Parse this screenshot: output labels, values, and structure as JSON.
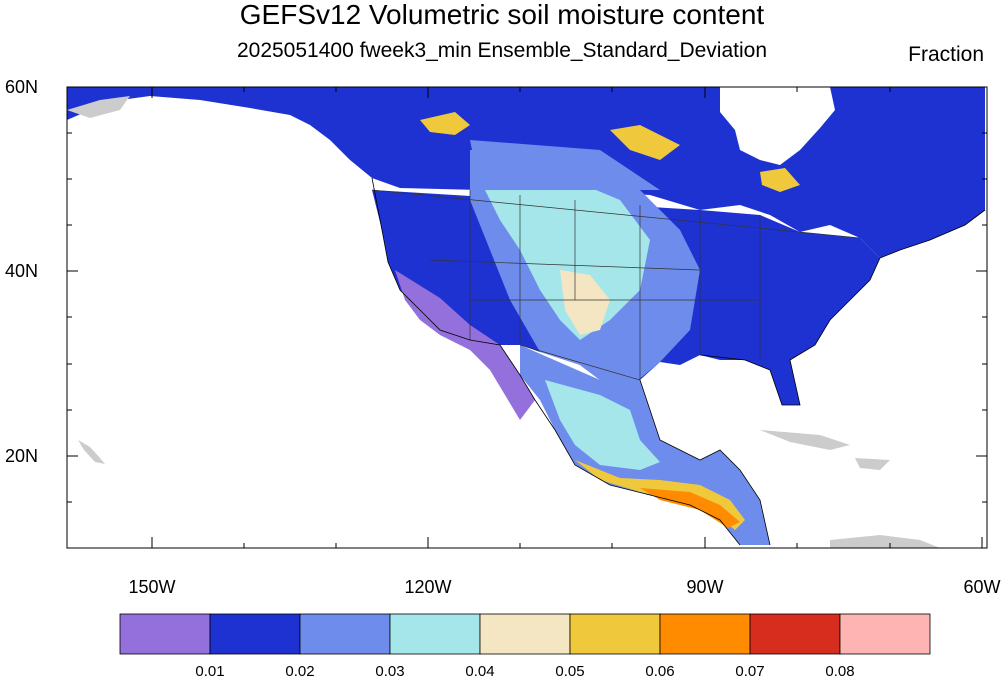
{
  "title": "GEFSv12 Volumetric soil moisture content",
  "subtitle": "2025051400 fweek3_min Ensemble_Standard_Deviation",
  "units": "Fraction",
  "lat_labels": [
    "60N",
    "40N",
    "20N"
  ],
  "lon_labels": [
    "150W",
    "120W",
    "90W",
    "60W"
  ],
  "colorbar": {
    "colors": [
      "#9370DB",
      "#1E32D2",
      "#6E8CEB",
      "#A5E6EB",
      "#F5E6C3",
      "#F0C83C",
      "#FF8C00",
      "#D72D1E",
      "#FFB4B4"
    ],
    "labels": [
      "0.01",
      "0.02",
      "0.03",
      "0.04",
      "0.05",
      "0.06",
      "0.07",
      "0.08"
    ]
  }
}
